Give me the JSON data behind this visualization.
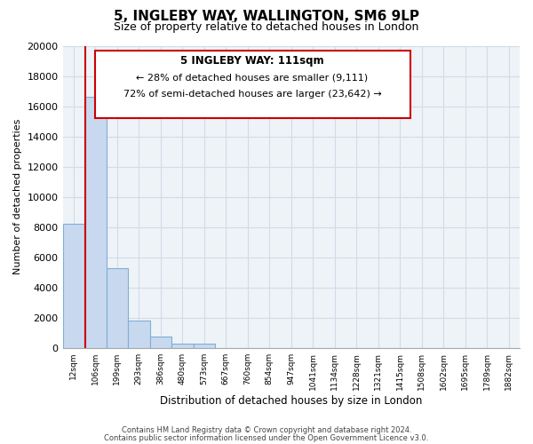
{
  "title": "5, INGLEBY WAY, WALLINGTON, SM6 9LP",
  "subtitle": "Size of property relative to detached houses in London",
  "xlabel": "Distribution of detached houses by size in London",
  "ylabel": "Number of detached properties",
  "bar_labels": [
    "12sqm",
    "106sqm",
    "199sqm",
    "293sqm",
    "386sqm",
    "480sqm",
    "573sqm",
    "667sqm",
    "760sqm",
    "854sqm",
    "947sqm",
    "1041sqm",
    "1134sqm",
    "1228sqm",
    "1321sqm",
    "1415sqm",
    "1508sqm",
    "1602sqm",
    "1695sqm",
    "1789sqm",
    "1882sqm"
  ],
  "bar_values": [
    8200,
    16600,
    5300,
    1800,
    780,
    280,
    280,
    0,
    0,
    0,
    0,
    0,
    0,
    0,
    0,
    0,
    0,
    0,
    0,
    0,
    0
  ],
  "bar_face_color": "#c8d9ef",
  "bar_edge_color": "#7fafd4",
  "line_color": "#cc0000",
  "ylim": [
    0,
    20000
  ],
  "yticks": [
    0,
    2000,
    4000,
    6000,
    8000,
    10000,
    12000,
    14000,
    16000,
    18000,
    20000
  ],
  "annotation_title": "5 INGLEBY WAY: 111sqm",
  "annotation_line1": "← 28% of detached houses are smaller (9,111)",
  "annotation_line2": "72% of semi-detached houses are larger (23,642) →",
  "footer1": "Contains HM Land Registry data © Crown copyright and database right 2024.",
  "footer2": "Contains public sector information licensed under the Open Government Licence v3.0.",
  "bin_edges": [
    12,
    106,
    199,
    293,
    386,
    480,
    573,
    667,
    760,
    854,
    947,
    1041,
    1134,
    1228,
    1321,
    1415,
    1508,
    1602,
    1695,
    1789,
    1882
  ],
  "property_size": 111,
  "grid_color": "#d0dce8",
  "bg_color": "#eef3f8"
}
